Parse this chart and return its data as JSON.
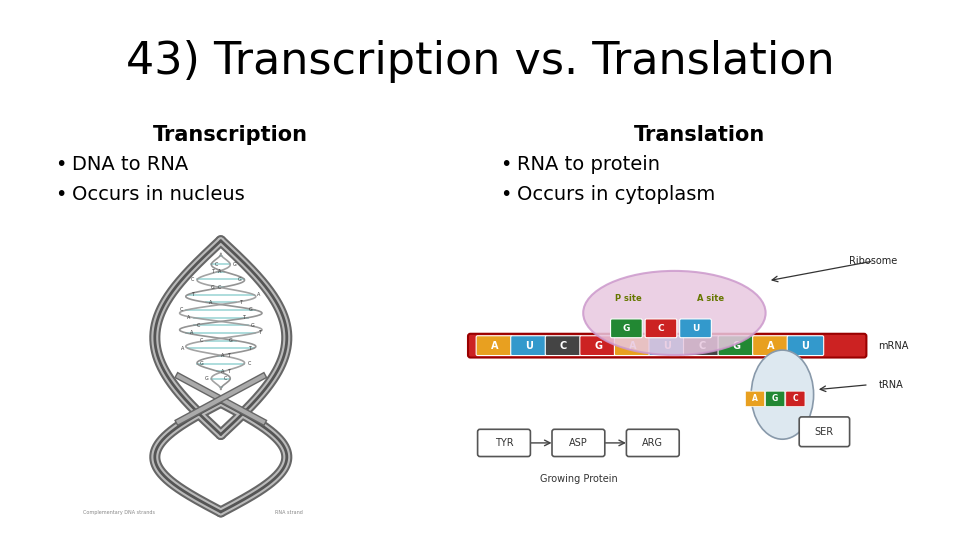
{
  "title": "43) Transcription vs. Translation",
  "title_fontsize": 32,
  "title_fontweight": "normal",
  "background_color": "#ffffff",
  "left_header": "Transcription",
  "right_header": "Translation",
  "left_bullets": [
    "DNA to RNA",
    "Occurs in nucleus"
  ],
  "right_bullets": [
    "RNA to protein",
    "Occurs in cytoplasm"
  ],
  "header_fontsize": 15,
  "bullet_fontsize": 14,
  "text_color": "#000000"
}
